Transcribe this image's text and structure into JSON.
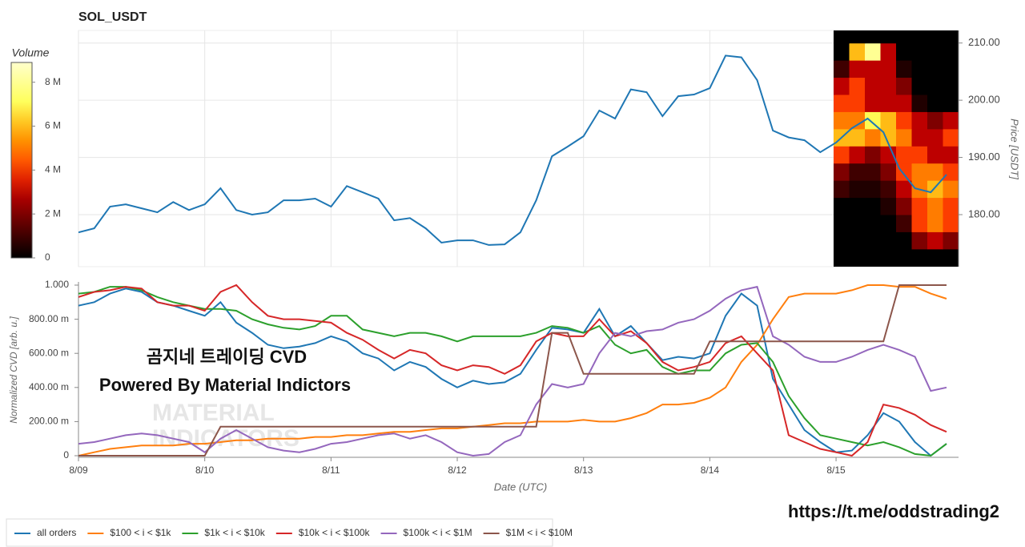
{
  "chart_data": [
    {
      "type": "line",
      "title": "SOL_USDT",
      "y_label": "Price [USDT]",
      "color": "#1f77b4",
      "grid": true,
      "x": [
        0,
        0.125,
        0.25,
        0.375,
        0.5,
        0.625,
        0.75,
        0.875,
        1,
        1.125,
        1.25,
        1.375,
        1.5,
        1.625,
        1.75,
        1.875,
        2,
        2.125,
        2.25,
        2.375,
        2.5,
        2.625,
        2.75,
        2.875,
        3,
        3.125,
        3.25,
        3.375,
        3.5,
        3.625,
        3.75,
        3.875,
        4,
        4.125,
        4.25,
        4.375,
        4.5,
        4.625,
        4.75,
        4.875,
        5,
        5.125,
        5.25,
        5.375,
        5.5,
        5.625,
        5.75,
        5.875,
        6,
        6.125,
        6.25,
        6.375,
        6.5,
        6.625,
        6.75,
        6.875
      ],
      "values": [
        176.9,
        177.6,
        181.4,
        181.8,
        181.1,
        180.4,
        182.2,
        180.8,
        181.8,
        184.6,
        180.8,
        180.0,
        180.4,
        182.5,
        182.5,
        182.8,
        181.4,
        185.0,
        183.9,
        182.8,
        179.0,
        179.4,
        177.6,
        175.1,
        175.5,
        175.5,
        174.7,
        174.8,
        176.9,
        182.5,
        190.2,
        191.9,
        193.7,
        198.2,
        196.8,
        201.9,
        201.4,
        197.2,
        200.7,
        201.0,
        202.1,
        207.8,
        207.5,
        203.5,
        194.7,
        193.5,
        193.0,
        190.9,
        192.6,
        195.1,
        196.8,
        194.4,
        188.1,
        184.6,
        183.9,
        187.0
      ],
      "xlim": [
        0,
        6.97
      ],
      "ylim": [
        170.9,
        212.2
      ],
      "yticks": [
        {
          "value": 180,
          "label": "180.00"
        },
        {
          "value": 190,
          "label": "190.00"
        },
        {
          "value": 200,
          "label": "200.00"
        },
        {
          "value": 210,
          "label": "210.00"
        }
      ],
      "heatmap": {
        "colorbar_label": "Volume",
        "clim": [
          0,
          8.9
        ],
        "cticks": [
          0,
          {
            "value": 2,
            "label": "2 M"
          },
          {
            "value": 4,
            "label": "4 M"
          },
          {
            "value": 6,
            "label": "6 M"
          },
          {
            "value": 8,
            "label": "8 M"
          }
        ],
        "price_edges": [
          171,
          174,
          177,
          180,
          183,
          186,
          189,
          192,
          195,
          198,
          201,
          204,
          207,
          210,
          213
        ],
        "volumes": [
          [
            0,
            0,
            0,
            0,
            0,
            0,
            0,
            0
          ],
          [
            0,
            0,
            0,
            0,
            0,
            2,
            3,
            2
          ],
          [
            0,
            0,
            0,
            0,
            1,
            4,
            5,
            4
          ],
          [
            0,
            0,
            0,
            0.5,
            2,
            4,
            5,
            4
          ],
          [
            1,
            0.5,
            0.5,
            1,
            3,
            5,
            6,
            5
          ],
          [
            2,
            1,
            1,
            2,
            4,
            5,
            5,
            4
          ],
          [
            4,
            3,
            2,
            3,
            4,
            4,
            3,
            3
          ],
          [
            6,
            6,
            5,
            6,
            5,
            3,
            3,
            4
          ],
          [
            5,
            5,
            7,
            6,
            4,
            3,
            2,
            3
          ],
          [
            4,
            4,
            3,
            3,
            3,
            0.5,
            0,
            0
          ],
          [
            3,
            4,
            3,
            3,
            2,
            0,
            0,
            0
          ],
          [
            1,
            3,
            3,
            3,
            0.5,
            0,
            0,
            0
          ],
          [
            0,
            6,
            8,
            3,
            0,
            0,
            0,
            0
          ],
          [
            0,
            0,
            0,
            0,
            0,
            0,
            0,
            0
          ]
        ]
      }
    },
    {
      "type": "line",
      "x_label": "Date (UTC)",
      "y_label": "Normalized CVD [arb. u.]",
      "annotations": [
        "곰지네 트레이딩 CVD",
        "Powered By Material Indictors",
        "MATERIAL",
        "INDICATORS",
        "https://t.me/oddstrading2"
      ],
      "x": [
        0,
        0.125,
        0.25,
        0.375,
        0.5,
        0.625,
        0.75,
        0.875,
        1,
        1.125,
        1.25,
        1.375,
        1.5,
        1.625,
        1.75,
        1.875,
        2,
        2.125,
        2.25,
        2.375,
        2.5,
        2.625,
        2.75,
        2.875,
        3,
        3.125,
        3.25,
        3.375,
        3.5,
        3.625,
        3.75,
        3.875,
        4,
        4.125,
        4.25,
        4.375,
        4.5,
        4.625,
        4.75,
        4.875,
        5,
        5.125,
        5.25,
        5.375,
        5.5,
        5.625,
        5.75,
        5.875,
        6,
        6.125,
        6.25,
        6.375,
        6.5,
        6.625,
        6.75,
        6.875
      ],
      "xlim": [
        0,
        6.97
      ],
      "ylim": [
        0,
        1
      ],
      "xticks": [
        {
          "value": 0,
          "label": "8/09"
        },
        {
          "value": 1,
          "label": "8/10"
        },
        {
          "value": 2,
          "label": "8/11"
        },
        {
          "value": 3,
          "label": "8/12"
        },
        {
          "value": 4,
          "label": "8/13"
        },
        {
          "value": 5,
          "label": "8/14"
        },
        {
          "value": 6,
          "label": "8/15"
        }
      ],
      "yticks": [
        0,
        {
          "value": 0.2,
          "label": "200.00 m"
        },
        {
          "value": 0.4,
          "label": "400.00 m"
        },
        {
          "value": 0.6,
          "label": "600.00 m"
        },
        {
          "value": 0.8,
          "label": "800.00 m"
        },
        {
          "value": 1,
          "label": "1.000"
        }
      ],
      "series": [
        {
          "name": "all orders",
          "color": "#1f77b4",
          "values": [
            0.88,
            0.9,
            0.95,
            0.98,
            0.96,
            0.9,
            0.88,
            0.85,
            0.82,
            0.9,
            0.78,
            0.72,
            0.65,
            0.63,
            0.64,
            0.66,
            0.7,
            0.67,
            0.6,
            0.57,
            0.5,
            0.55,
            0.52,
            0.45,
            0.4,
            0.44,
            0.42,
            0.43,
            0.48,
            0.62,
            0.75,
            0.74,
            0.72,
            0.86,
            0.7,
            0.76,
            0.66,
            0.56,
            0.58,
            0.57,
            0.6,
            0.82,
            0.95,
            0.88,
            0.45,
            0.3,
            0.15,
            0.08,
            0.02,
            0.03,
            0.12,
            0.25,
            0.2,
            0.08,
            0.0,
            0.07
          ]
        },
        {
          "name": "$100 < i < $1k",
          "color": "#ff7f0e",
          "values": [
            0,
            0.02,
            0.04,
            0.05,
            0.06,
            0.06,
            0.06,
            0.07,
            0.07,
            0.08,
            0.09,
            0.09,
            0.1,
            0.1,
            0.1,
            0.11,
            0.11,
            0.12,
            0.12,
            0.13,
            0.14,
            0.14,
            0.15,
            0.16,
            0.16,
            0.17,
            0.18,
            0.19,
            0.19,
            0.2,
            0.2,
            0.2,
            0.21,
            0.2,
            0.2,
            0.22,
            0.25,
            0.3,
            0.3,
            0.31,
            0.34,
            0.4,
            0.55,
            0.65,
            0.8,
            0.93,
            0.95,
            0.95,
            0.95,
            0.97,
            1.0,
            1.0,
            0.99,
            0.99,
            0.95,
            0.92
          ]
        },
        {
          "name": "$1k < i < $10k",
          "color": "#2ca02c",
          "values": [
            0.95,
            0.96,
            0.99,
            0.99,
            0.97,
            0.93,
            0.9,
            0.88,
            0.86,
            0.86,
            0.85,
            0.8,
            0.77,
            0.75,
            0.74,
            0.76,
            0.82,
            0.82,
            0.74,
            0.72,
            0.7,
            0.72,
            0.72,
            0.7,
            0.67,
            0.7,
            0.7,
            0.7,
            0.7,
            0.72,
            0.76,
            0.75,
            0.72,
            0.76,
            0.65,
            0.6,
            0.62,
            0.52,
            0.48,
            0.5,
            0.5,
            0.6,
            0.65,
            0.66,
            0.55,
            0.35,
            0.22,
            0.12,
            0.1,
            0.08,
            0.06,
            0.08,
            0.05,
            0.01,
            0.0,
            0.07
          ]
        },
        {
          "name": "$10k < i < $100k",
          "color": "#d62728",
          "values": [
            0.93,
            0.96,
            0.97,
            0.99,
            0.98,
            0.9,
            0.88,
            0.88,
            0.85,
            0.96,
            1.0,
            0.9,
            0.82,
            0.8,
            0.8,
            0.79,
            0.78,
            0.72,
            0.68,
            0.62,
            0.57,
            0.62,
            0.6,
            0.53,
            0.5,
            0.53,
            0.52,
            0.48,
            0.53,
            0.67,
            0.72,
            0.7,
            0.7,
            0.8,
            0.7,
            0.73,
            0.66,
            0.55,
            0.5,
            0.52,
            0.55,
            0.66,
            0.7,
            0.6,
            0.5,
            0.12,
            0.08,
            0.04,
            0.02,
            0.0,
            0.08,
            0.3,
            0.28,
            0.24,
            0.18,
            0.14
          ]
        },
        {
          "name": "$100k < i < $1M",
          "color": "#9467bd",
          "values": [
            0.07,
            0.08,
            0.1,
            0.12,
            0.13,
            0.12,
            0.1,
            0.08,
            0.02,
            0.1,
            0.15,
            0.1,
            0.05,
            0.03,
            0.02,
            0.04,
            0.07,
            0.08,
            0.1,
            0.12,
            0.13,
            0.1,
            0.12,
            0.08,
            0.02,
            0.0,
            0.01,
            0.08,
            0.12,
            0.3,
            0.42,
            0.4,
            0.42,
            0.6,
            0.72,
            0.7,
            0.73,
            0.74,
            0.78,
            0.8,
            0.85,
            0.92,
            0.97,
            0.99,
            0.7,
            0.65,
            0.58,
            0.55,
            0.55,
            0.58,
            0.62,
            0.65,
            0.62,
            0.58,
            0.38,
            0.4
          ]
        },
        {
          "name": "$1M < i < $10M",
          "color": "#8c564b",
          "values": [
            0,
            0,
            0,
            0,
            0,
            0,
            0,
            0,
            0,
            0.17,
            0.17,
            0.17,
            0.17,
            0.17,
            0.17,
            0.17,
            0.17,
            0.17,
            0.17,
            0.17,
            0.17,
            0.17,
            0.17,
            0.17,
            0.17,
            0.17,
            0.17,
            0.17,
            0.17,
            0.17,
            0.72,
            0.72,
            0.48,
            0.48,
            0.48,
            0.48,
            0.48,
            0.48,
            0.48,
            0.48,
            0.67,
            0.67,
            0.67,
            0.67,
            0.67,
            0.67,
            0.67,
            0.67,
            0.67,
            0.67,
            0.67,
            0.67,
            1,
            1,
            1,
            1
          ]
        }
      ]
    }
  ]
}
